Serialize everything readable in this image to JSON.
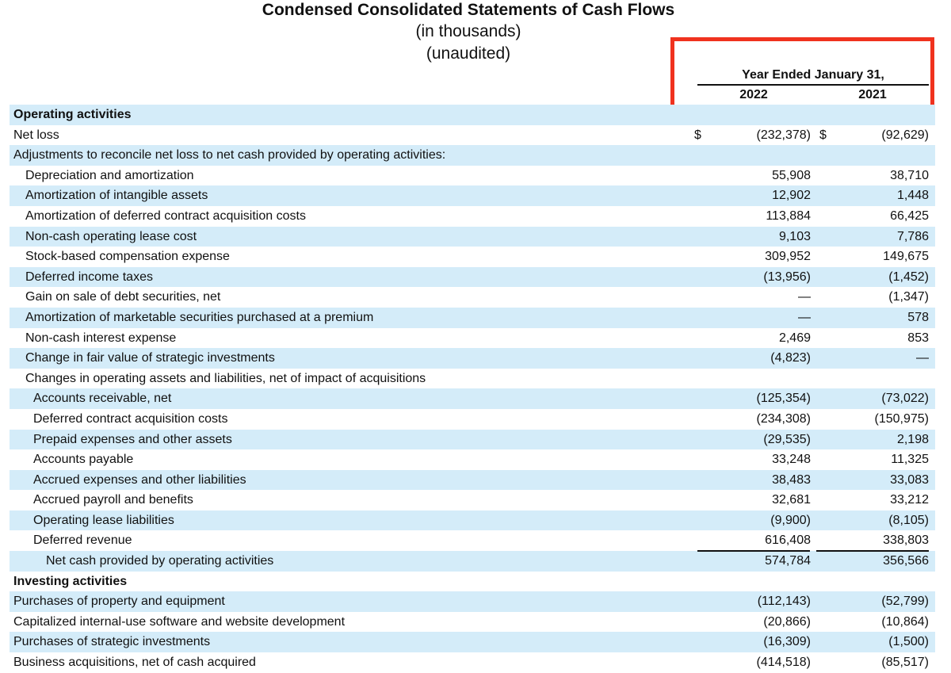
{
  "statement": {
    "title": "Condensed Consolidated Statements of Cash Flows",
    "units": "(in thousands)",
    "audit_status": "(unaudited)"
  },
  "columns": {
    "period_header": "Year Ended January 31,",
    "year_a": "2022",
    "year_b": "2021",
    "highlight_color": "#f0321e"
  },
  "rows": [
    {
      "label": "Operating activities",
      "indent": 0,
      "bold": true,
      "shaded": true,
      "v2022": "",
      "v2021": ""
    },
    {
      "label": "Net loss",
      "indent": 0,
      "bold": false,
      "shaded": false,
      "dollar": "$",
      "v2022": "(232,378)",
      "v2021": "(92,629)"
    },
    {
      "label": "Adjustments to reconcile net loss to net cash provided by operating activities:",
      "indent": 0,
      "bold": false,
      "shaded": true,
      "v2022": "",
      "v2021": ""
    },
    {
      "label": "Depreciation and amortization",
      "indent": 1,
      "bold": false,
      "shaded": false,
      "v2022": "55,908",
      "v2021": "38,710"
    },
    {
      "label": "Amortization of intangible assets",
      "indent": 1,
      "bold": false,
      "shaded": true,
      "v2022": "12,902",
      "v2021": "1,448"
    },
    {
      "label": "Amortization of deferred contract acquisition costs",
      "indent": 1,
      "bold": false,
      "shaded": false,
      "v2022": "113,884",
      "v2021": "66,425"
    },
    {
      "label": "Non-cash operating lease cost",
      "indent": 1,
      "bold": false,
      "shaded": true,
      "v2022": "9,103",
      "v2021": "7,786"
    },
    {
      "label": "Stock-based compensation expense",
      "indent": 1,
      "bold": false,
      "shaded": false,
      "v2022": "309,952",
      "v2021": "149,675"
    },
    {
      "label": "Deferred income taxes",
      "indent": 1,
      "bold": false,
      "shaded": true,
      "v2022": "(13,956)",
      "v2021": "(1,452)"
    },
    {
      "label": "Gain on sale of debt securities, net",
      "indent": 1,
      "bold": false,
      "shaded": false,
      "v2022": "—",
      "v2021": "(1,347)"
    },
    {
      "label": "Amortization of marketable securities purchased at a premium",
      "indent": 1,
      "bold": false,
      "shaded": true,
      "v2022": "—",
      "v2021": "578"
    },
    {
      "label": "Non-cash interest expense",
      "indent": 1,
      "bold": false,
      "shaded": false,
      "v2022": "2,469",
      "v2021": "853"
    },
    {
      "label": "Change in fair value of strategic investments",
      "indent": 1,
      "bold": false,
      "shaded": true,
      "v2022": "(4,823)",
      "v2021": "—"
    },
    {
      "label": "Changes in operating assets and liabilities, net of impact of acquisitions",
      "indent": 1,
      "bold": false,
      "shaded": false,
      "v2022": "",
      "v2021": ""
    },
    {
      "label": "Accounts receivable, net",
      "indent": 2,
      "bold": false,
      "shaded": true,
      "v2022": "(125,354)",
      "v2021": "(73,022)"
    },
    {
      "label": "Deferred contract acquisition costs",
      "indent": 2,
      "bold": false,
      "shaded": false,
      "v2022": "(234,308)",
      "v2021": "(150,975)"
    },
    {
      "label": "Prepaid expenses and other assets",
      "indent": 2,
      "bold": false,
      "shaded": true,
      "v2022": "(29,535)",
      "v2021": "2,198"
    },
    {
      "label": "Accounts payable",
      "indent": 2,
      "bold": false,
      "shaded": false,
      "v2022": "33,248",
      "v2021": "11,325"
    },
    {
      "label": "Accrued expenses and other liabilities",
      "indent": 2,
      "bold": false,
      "shaded": true,
      "v2022": "38,483",
      "v2021": "33,083"
    },
    {
      "label": "Accrued payroll and benefits",
      "indent": 2,
      "bold": false,
      "shaded": false,
      "v2022": "32,681",
      "v2021": "33,212"
    },
    {
      "label": "Operating lease liabilities",
      "indent": 2,
      "bold": false,
      "shaded": true,
      "v2022": "(9,900)",
      "v2021": "(8,105)"
    },
    {
      "label": "Deferred revenue",
      "indent": 2,
      "bold": false,
      "shaded": false,
      "v2022": "616,408",
      "v2021": "338,803"
    },
    {
      "label": "Net cash provided by operating activities",
      "indent": 3,
      "bold": false,
      "shaded": true,
      "total": true,
      "v2022": "574,784",
      "v2021": "356,566"
    },
    {
      "label": "Investing activities",
      "indent": 0,
      "bold": true,
      "shaded": false,
      "v2022": "",
      "v2021": ""
    },
    {
      "label": "Purchases of property and equipment",
      "indent": 0,
      "bold": false,
      "shaded": true,
      "v2022": "(112,143)",
      "v2021": "(52,799)"
    },
    {
      "label": "Capitalized internal-use software and website development",
      "indent": 0,
      "bold": false,
      "shaded": false,
      "v2022": "(20,866)",
      "v2021": "(10,864)"
    },
    {
      "label": "Purchases of strategic investments",
      "indent": 0,
      "bold": false,
      "shaded": true,
      "v2022": "(16,309)",
      "v2021": "(1,500)"
    },
    {
      "label": "Business acquisitions, net of cash acquired",
      "indent": 0,
      "bold": false,
      "shaded": false,
      "v2022": "(414,518)",
      "v2021": "(85,517)"
    }
  ]
}
